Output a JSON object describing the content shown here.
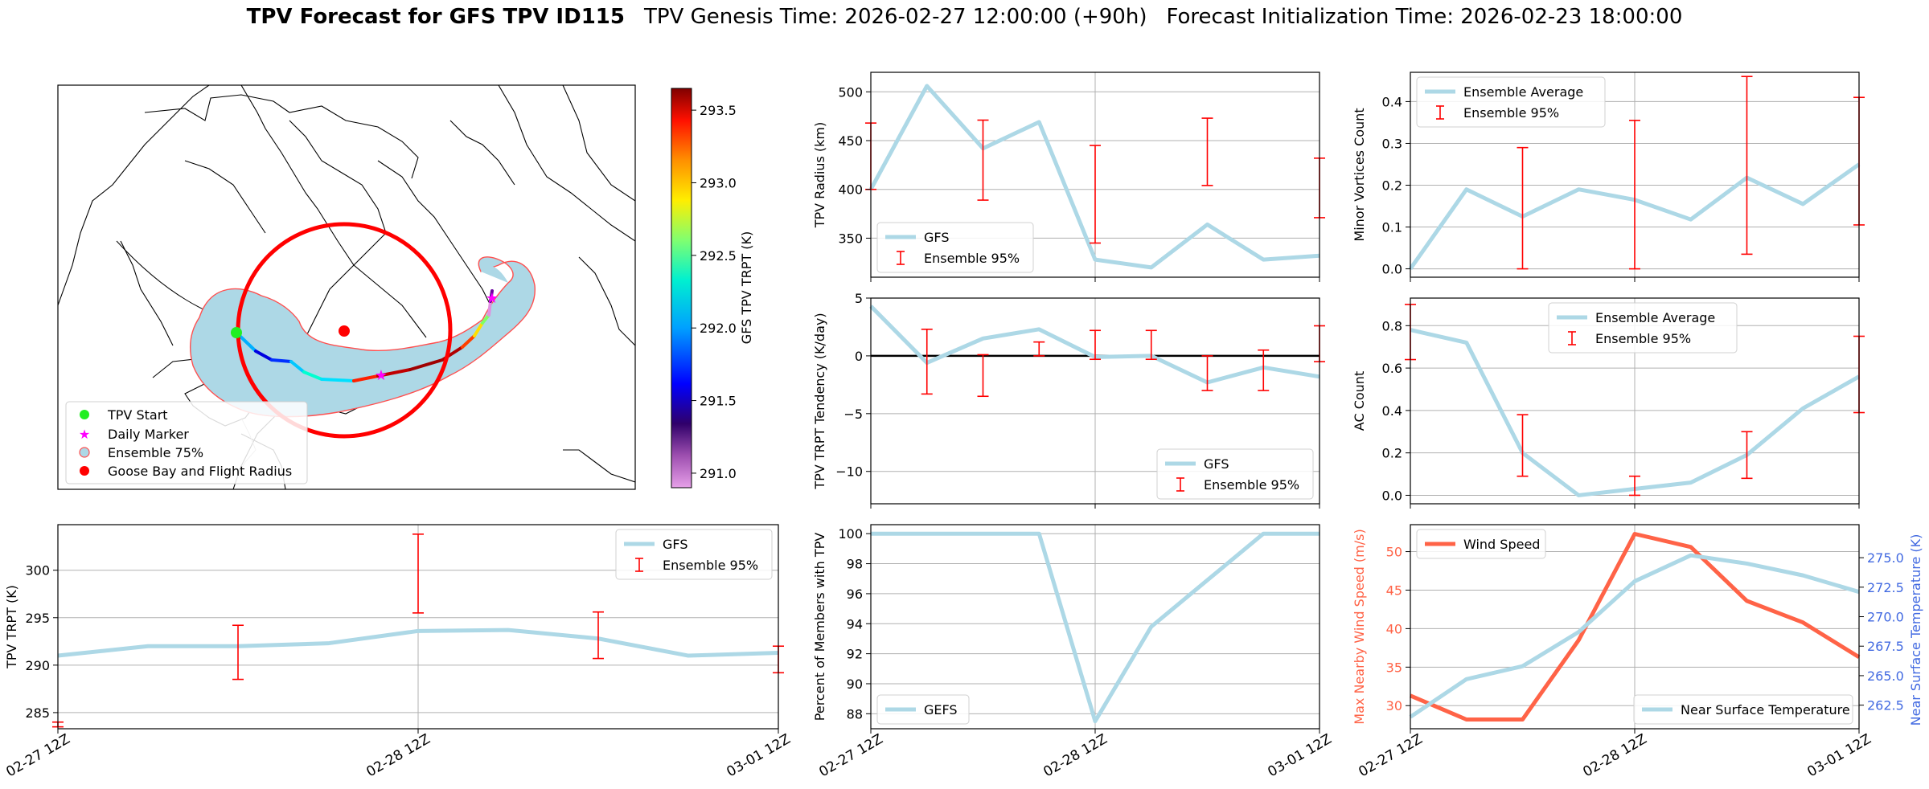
{
  "title": {
    "main": "TPV Forecast for GFS TPV ID115",
    "genesis": "TPV Genesis Time: 2026-02-27 12:00:00 (+90h)",
    "init": "Forecast Initialization Time: 2026-02-23 18:00:00"
  },
  "colors": {
    "gfs_line": "#add8e6",
    "error_bar": "#ff0000",
    "wind": "#ff6347",
    "temp_axis": "#4169e1",
    "track_range_cmap": "plasma-jet"
  },
  "chart_data": [
    {
      "id": "map",
      "type": "map",
      "legend": [
        "TPV Start",
        "Daily Marker",
        "Ensemble 75%",
        "Goose Bay and Flight Radius"
      ],
      "colorbar": {
        "label": "GFS TPV TRPT (K)",
        "ticks": [
          "291.0",
          "291.5",
          "292.0",
          "292.5",
          "293.0",
          "293.5"
        ],
        "range": [
          290.9,
          293.65
        ]
      }
    },
    {
      "id": "radius",
      "type": "line",
      "ylabel": "TPV Radius (km)",
      "ylim": [
        310,
        520
      ],
      "yticks": [
        "350",
        "400",
        "450",
        "500"
      ],
      "x_ticklabels": [],
      "legend": [
        "GFS",
        "Ensemble 95%"
      ],
      "x": [
        0,
        1,
        2,
        3,
        4,
        5,
        6,
        7,
        8
      ],
      "series": [
        {
          "name": "GFS",
          "values": [
            400,
            506,
            442,
            469,
            328,
            320,
            364,
            328,
            332
          ]
        }
      ],
      "errorbars": [
        {
          "x": 0,
          "low": 400,
          "high": 468
        },
        {
          "x": 2,
          "low": 389,
          "high": 471
        },
        {
          "x": 4,
          "low": 345,
          "high": 445
        },
        {
          "x": 6,
          "low": 404,
          "high": 473
        },
        {
          "x": 8,
          "low": 371,
          "high": 432
        }
      ]
    },
    {
      "id": "minor",
      "type": "line",
      "ylabel": "Minor Vortices Count",
      "ylim": [
        -0.02,
        0.47
      ],
      "yticks": [
        "0.0",
        "0.1",
        "0.2",
        "0.3",
        "0.4"
      ],
      "x_ticklabels": [],
      "legend": [
        "Ensemble Average",
        "Ensemble 95%"
      ],
      "x": [
        0,
        1,
        2,
        3,
        4,
        5,
        6,
        7,
        8
      ],
      "series": [
        {
          "name": "Ensemble Average",
          "values": [
            0.0,
            0.19,
            0.125,
            0.19,
            0.165,
            0.118,
            0.218,
            0.155,
            0.25
          ]
        }
      ],
      "errorbars": [
        {
          "x": 2,
          "low": 0.0,
          "high": 0.29
        },
        {
          "x": 4,
          "low": 0.0,
          "high": 0.355
        },
        {
          "x": 6,
          "low": 0.035,
          "high": 0.46
        },
        {
          "x": 8,
          "low": 0.105,
          "high": 0.41
        }
      ]
    },
    {
      "id": "tendency",
      "type": "line",
      "ylabel": "TPV TRPT Tendency (K/day)",
      "ylim": [
        -12.8,
        5
      ],
      "yticks": [
        "−10",
        "−5",
        "0",
        "5"
      ],
      "x_ticklabels": [],
      "legend": [
        "GFS",
        "Ensemble 95%"
      ],
      "x": [
        0,
        1,
        2,
        3,
        4,
        5,
        6,
        7,
        8
      ],
      "series": [
        {
          "name": "GFS",
          "values": [
            4.3,
            -0.6,
            1.5,
            2.3,
            -0.1,
            0.0,
            -2.3,
            -1.0,
            -1.8
          ]
        }
      ],
      "errorbars": [
        {
          "x": 1,
          "low": -3.3,
          "high": 2.3
        },
        {
          "x": 2,
          "low": -3.5,
          "high": 0.1
        },
        {
          "x": 3,
          "low": 0.0,
          "high": 1.2
        },
        {
          "x": 4,
          "low": -0.3,
          "high": 2.2
        },
        {
          "x": 5,
          "low": -0.3,
          "high": 2.2
        },
        {
          "x": 6,
          "low": -3.0,
          "high": 0.0
        },
        {
          "x": 7,
          "low": -3.0,
          "high": 0.5
        },
        {
          "x": 8,
          "low": -0.5,
          "high": 2.6
        }
      ]
    },
    {
      "id": "ac",
      "type": "line",
      "ylabel": "AC Count",
      "ylim": [
        -0.04,
        0.93
      ],
      "yticks": [
        "0.0",
        "0.2",
        "0.4",
        "0.6",
        "0.8"
      ],
      "x_ticklabels": [],
      "legend": [
        "Ensemble Average",
        "Ensemble 95%"
      ],
      "x": [
        0,
        1,
        2,
        3,
        4,
        5,
        6,
        7,
        8
      ],
      "series": [
        {
          "name": "Ensemble Average",
          "values": [
            0.78,
            0.72,
            0.2,
            0.0,
            0.03,
            0.06,
            0.19,
            0.41,
            0.56
          ]
        }
      ],
      "errorbars": [
        {
          "x": 0,
          "low": 0.64,
          "high": 0.9
        },
        {
          "x": 2,
          "low": 0.09,
          "high": 0.38
        },
        {
          "x": 4,
          "low": 0.0,
          "high": 0.09
        },
        {
          "x": 6,
          "low": 0.08,
          "high": 0.3
        },
        {
          "x": 8,
          "low": 0.39,
          "high": 0.75
        }
      ]
    },
    {
      "id": "trpt",
      "type": "line",
      "ylabel": "TPV TRPT (K)",
      "ylim": [
        283.3,
        304.8
      ],
      "yticks": [
        "285",
        "290",
        "295",
        "300"
      ],
      "x_ticklabels": [
        "02-27 12Z",
        "02-28 12Z",
        "03-01 12Z"
      ],
      "legend": [
        "GFS",
        "Ensemble 95%"
      ],
      "x": [
        0,
        1,
        2,
        3,
        4,
        5,
        6,
        7,
        8
      ],
      "series": [
        {
          "name": "GFS",
          "values": [
            291.0,
            292.0,
            292.0,
            292.3,
            293.6,
            293.7,
            292.8,
            291.0,
            291.3
          ]
        }
      ],
      "errorbars": [
        {
          "x": 0,
          "low": 283.5,
          "high": 284.0
        },
        {
          "x": 2,
          "low": 288.5,
          "high": 294.2
        },
        {
          "x": 4,
          "low": 295.5,
          "high": 303.8
        },
        {
          "x": 6,
          "low": 290.7,
          "high": 295.6
        },
        {
          "x": 8,
          "low": 289.2,
          "high": 292.0
        }
      ]
    },
    {
      "id": "percent",
      "type": "line",
      "ylabel": "Percent of Members with TPV",
      "ylim": [
        87,
        100.6
      ],
      "yticks": [
        "88",
        "90",
        "92",
        "94",
        "96",
        "98",
        "100"
      ],
      "x_ticklabels": [
        "02-27 12Z",
        "02-28 12Z",
        "03-01 12Z"
      ],
      "legend": [
        "GEFS"
      ],
      "x": [
        0,
        1,
        2,
        3,
        4,
        5,
        6,
        7,
        8
      ],
      "series": [
        {
          "name": "GEFS",
          "values": [
            100,
            100,
            100,
            100,
            87.5,
            93.8,
            96.9,
            100,
            100
          ]
        }
      ]
    },
    {
      "id": "wind",
      "type": "line",
      "ylabel": "Max Nearby Wind Speed (m/s)",
      "ylim": [
        27,
        53.5
      ],
      "yticks": [
        "30",
        "35",
        "40",
        "45",
        "50"
      ],
      "y2label": "Near Surface Temperature (K)",
      "y2lim": [
        260.5,
        277.8
      ],
      "y2ticks": [
        "262.5",
        "265.0",
        "267.5",
        "270.0",
        "272.5",
        "275.0"
      ],
      "x_ticklabels": [
        "02-27 12Z",
        "02-28 12Z",
        "03-01 12Z"
      ],
      "legend": [
        "Wind Speed",
        "Near Surface Temperature"
      ],
      "x": [
        0,
        1,
        2,
        3,
        4,
        5,
        6,
        7,
        8
      ],
      "series": [
        {
          "name": "Wind Speed",
          "values": [
            31.3,
            28.2,
            28.2,
            38.5,
            52.3,
            50.6,
            43.6,
            40.8,
            36.3
          ],
          "axis": "left"
        },
        {
          "name": "Near Surface Temperature",
          "values": [
            261.5,
            264.7,
            265.8,
            268.7,
            273.0,
            275.2,
            274.5,
            273.5,
            272.1
          ],
          "axis": "right"
        }
      ]
    }
  ]
}
